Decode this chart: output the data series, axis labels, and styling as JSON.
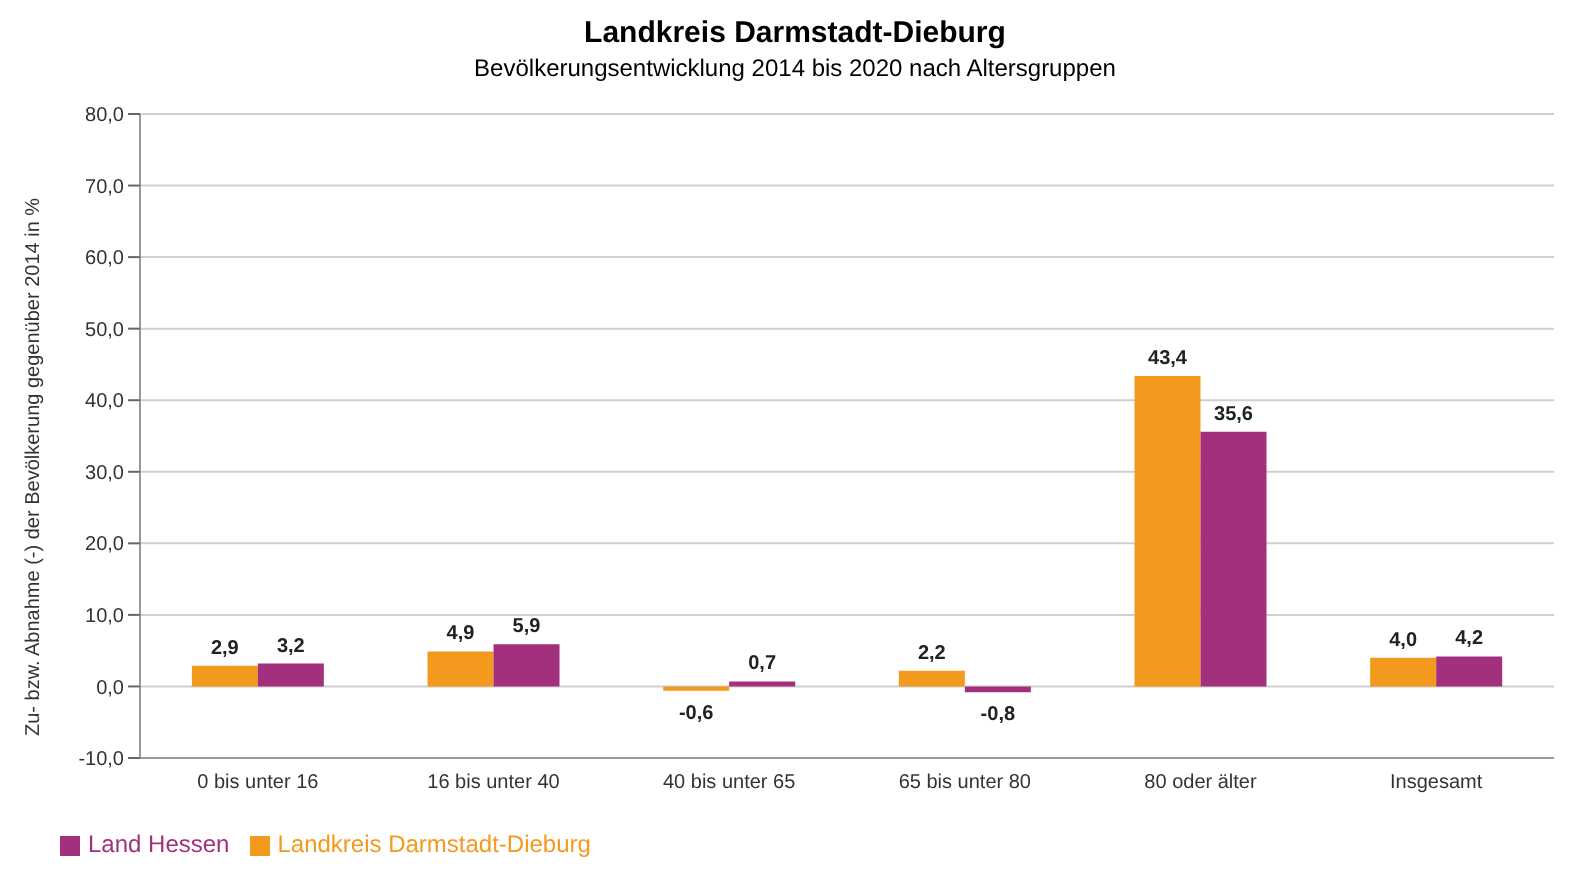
{
  "chart_data": {
    "type": "bar",
    "title": "Landkreis Darmstadt-Dieburg",
    "subtitle": "Bevölkerungsentwicklung 2014 bis 2020 nach Altersgruppen",
    "ylabel": "Zu- bzw. Abnahme (-) der Bevölkerung gegenüber 2014 in %",
    "categories": [
      "0 bis unter 16",
      "16 bis unter 40",
      "40 bis unter 65",
      "65 bis unter 80",
      "80 oder älter",
      "Insgesamt"
    ],
    "series": [
      {
        "name": "Landkreis Darmstadt-Dieburg",
        "color": "#f39a1e",
        "values": [
          2.9,
          4.9,
          -0.6,
          2.2,
          43.4,
          4.0
        ],
        "value_labels": [
          "2,9",
          "4,9",
          "-0,6",
          "2,2",
          "43,4",
          "4,0"
        ]
      },
      {
        "name": "Land Hessen",
        "color": "#a3307c",
        "values": [
          3.2,
          5.9,
          0.7,
          -0.8,
          35.6,
          4.2
        ],
        "value_labels": [
          "3,2",
          "5,9",
          "0,7",
          "-0,8",
          "35,6",
          "4,2"
        ]
      }
    ],
    "ylim": [
      -10,
      80
    ],
    "yticks": [
      {
        "value": -10,
        "label": "-10,0"
      },
      {
        "value": 0,
        "label": "0,0"
      },
      {
        "value": 10,
        "label": "10,0"
      },
      {
        "value": 20,
        "label": "20,0"
      },
      {
        "value": 30,
        "label": "30,0"
      },
      {
        "value": 40,
        "label": "40,0"
      },
      {
        "value": 50,
        "label": "50,0"
      },
      {
        "value": 60,
        "label": "60,0"
      },
      {
        "value": 70,
        "label": "70,0"
      },
      {
        "value": 80,
        "label": "80,0"
      }
    ],
    "grid": "y",
    "legend": "bottom left"
  }
}
